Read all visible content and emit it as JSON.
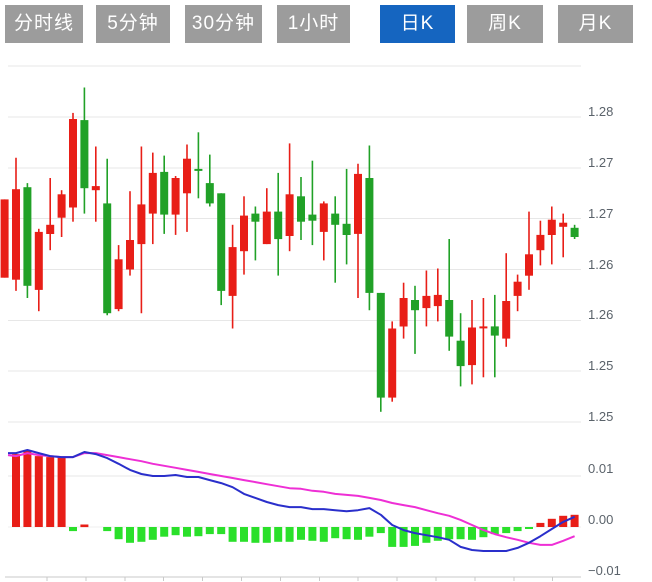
{
  "tabs": [
    {
      "label": "分时线",
      "active": false
    },
    {
      "label": "5分钟",
      "active": false
    },
    {
      "label": "30分钟",
      "active": false
    },
    {
      "label": "1小时",
      "active": false
    },
    {
      "label": "日K",
      "active": true
    },
    {
      "label": "周K",
      "active": false
    },
    {
      "label": "月K",
      "active": false
    }
  ],
  "colors": {
    "tab_bg": "#9c9c9c",
    "tab_active_bg": "#1565c0",
    "tab_text": "#ffffff",
    "up": "#e81e17",
    "down": "#21a127",
    "macd_up": "#e81e17",
    "macd_down": "#2ae02a",
    "dif_line": "#2a2fcb",
    "dea_line": "#ee2fd5",
    "grid": "#e7e7e7",
    "zero_line": "#efefef",
    "axis_line": "#c9c9c9",
    "label_text": "#5b636b"
  },
  "chart_data": {
    "type": "candlestick",
    "title": "",
    "xlabel": "",
    "ylabel": "",
    "legend": [],
    "grid": true,
    "panels": [
      {
        "name": "price",
        "type": "candlestick",
        "ylim": [
          1.2495,
          1.285
        ],
        "grid_prices": [
          1.285,
          1.28,
          1.275,
          1.27,
          1.265,
          1.26,
          1.255,
          1.25
        ],
        "y_ticks": {
          "labels": [
            "1.28",
            "1.27",
            "1.27",
            "1.26",
            "1.26",
            "1.25",
            "1.25"
          ],
          "prices": [
            1.28,
            1.275,
            1.27,
            1.265,
            1.26,
            1.255,
            1.25
          ]
        },
        "candles_ohlc": [
          [
            1.2642,
            1.2719,
            1.2642,
            1.2719
          ],
          [
            1.264,
            1.276,
            1.2629,
            1.2729
          ],
          [
            1.2731,
            1.2735,
            1.2622,
            1.2634
          ],
          [
            1.263,
            1.269,
            1.2609,
            1.2687
          ],
          [
            1.2685,
            1.274,
            1.2669,
            1.2694
          ],
          [
            1.2701,
            1.2728,
            1.2682,
            1.2724
          ],
          [
            1.2711,
            1.2804,
            1.2697,
            1.2798
          ],
          [
            1.2797,
            1.2829,
            1.2705,
            1.273
          ],
          [
            1.2728,
            1.2771,
            1.2697,
            1.2732
          ],
          [
            1.2715,
            1.2759,
            1.2605,
            1.2607
          ],
          [
            1.2611,
            1.2674,
            1.2609,
            1.266
          ],
          [
            1.265,
            1.2727,
            1.2644,
            1.2679
          ],
          [
            1.2675,
            1.2771,
            1.2607,
            1.2714
          ],
          [
            1.2705,
            1.2765,
            1.2675,
            1.2745
          ],
          [
            1.2746,
            1.2762,
            1.2685,
            1.2704
          ],
          [
            1.2704,
            1.2742,
            1.2684,
            1.274
          ],
          [
            1.2725,
            1.2773,
            1.2687,
            1.2759
          ],
          [
            1.2749,
            1.2785,
            1.272,
            1.2747
          ],
          [
            1.2735,
            1.2763,
            1.2712,
            1.2715
          ],
          [
            1.2725,
            1.2725,
            1.2615,
            1.2629
          ],
          [
            1.2624,
            1.2694,
            1.2592,
            1.2672
          ],
          [
            1.2668,
            1.2722,
            1.2645,
            1.2703
          ],
          [
            1.2705,
            1.2712,
            1.2659,
            1.2697
          ],
          [
            1.2675,
            1.273,
            1.2675,
            1.2707
          ],
          [
            1.2707,
            1.2745,
            1.2644,
            1.268
          ],
          [
            1.2683,
            1.2774,
            1.2668,
            1.2724
          ],
          [
            1.2722,
            1.2741,
            1.2679,
            1.2697
          ],
          [
            1.2704,
            1.2757,
            1.2674,
            1.2698
          ],
          [
            1.2687,
            1.2717,
            1.2659,
            1.2715
          ],
          [
            1.2705,
            1.2722,
            1.2637,
            1.2694
          ],
          [
            1.2695,
            1.2749,
            1.2655,
            1.2684
          ],
          [
            1.2685,
            1.2754,
            1.2622,
            1.2744
          ],
          [
            1.274,
            1.2772,
            1.261,
            1.2627
          ],
          [
            1.2627,
            1.2627,
            1.251,
            1.2524
          ],
          [
            1.2524,
            1.2599,
            1.252,
            1.2592
          ],
          [
            1.2594,
            1.2637,
            1.2582,
            1.2622
          ],
          [
            1.262,
            1.2634,
            1.2567,
            1.261
          ],
          [
            1.2612,
            1.2649,
            1.2594,
            1.2624
          ],
          [
            1.2614,
            1.2651,
            1.2599,
            1.2625
          ],
          [
            1.262,
            1.268,
            1.257,
            1.2584
          ],
          [
            1.258,
            1.2607,
            1.2535,
            1.2555
          ],
          [
            1.2556,
            1.262,
            1.2537,
            1.2593
          ],
          [
            1.2592,
            1.2622,
            1.2544,
            1.2594
          ],
          [
            1.2594,
            1.2625,
            1.2544,
            1.2585
          ],
          [
            1.2582,
            1.2666,
            1.2574,
            1.2619
          ],
          [
            1.2624,
            1.2645,
            1.2609,
            1.2638
          ],
          [
            1.2644,
            1.2707,
            1.263,
            1.2665
          ],
          [
            1.2669,
            1.2698,
            1.2654,
            1.2684
          ],
          [
            1.2684,
            1.2712,
            1.2655,
            1.2699
          ],
          [
            1.2692,
            1.2705,
            1.2662,
            1.2696
          ],
          [
            1.2691,
            1.2694,
            1.268,
            1.2682
          ]
        ]
      },
      {
        "name": "macd",
        "type": "bar+line",
        "ylim": [
          -0.012,
          0.017
        ],
        "y_ticks": {
          "labels": [
            "0.01",
            "0.00",
            "−0.01"
          ],
          "values": [
            0.01,
            0,
            -0.01
          ]
        },
        "histogram": [
          null,
          0.0143,
          0.0151,
          0.0139,
          0.0137,
          0.0137,
          -0.0008,
          0.0005,
          null,
          -0.0008,
          -0.0024,
          -0.0031,
          -0.0029,
          -0.0025,
          -0.0019,
          -0.0016,
          -0.0019,
          -0.0018,
          -0.0014,
          -0.0014,
          -0.0029,
          -0.0029,
          -0.0031,
          -0.0031,
          -0.0029,
          -0.0029,
          -0.0025,
          -0.0027,
          -0.0029,
          -0.0022,
          -0.0024,
          -0.0025,
          -0.0019,
          -0.0012,
          -0.0039,
          -0.0039,
          -0.0037,
          -0.0031,
          -0.0027,
          -0.0024,
          -0.0024,
          -0.0025,
          -0.002,
          -0.0014,
          -0.0012,
          -0.0008,
          -0.0004,
          0.0008,
          0.0016,
          0.0022,
          0.0024
        ],
        "series": [
          {
            "name": "DIF",
            "values": [
              0.0145,
              0.0145,
              0.0151,
              0.0145,
              0.0139,
              0.0137,
              0.0137,
              0.0147,
              0.0143,
              0.0135,
              0.0124,
              0.0112,
              0.0104,
              0.01,
              0.01,
              0.0102,
              0.0098,
              0.0098,
              0.0092,
              0.0086,
              0.0078,
              0.0065,
              0.0057,
              0.0049,
              0.0043,
              0.0039,
              0.0039,
              0.0035,
              0.0035,
              0.0033,
              0.0031,
              0.0033,
              0.0037,
              0.0024,
              0.0004,
              -0.0006,
              -0.0012,
              -0.0016,
              -0.002,
              -0.0025,
              -0.0039,
              -0.0045,
              -0.0047,
              -0.0047,
              -0.0047,
              -0.0041,
              -0.0031,
              -0.0018,
              -0.0004,
              0.001,
              0.002
            ]
          },
          {
            "name": "DEA",
            "values": [
              0.0141,
              0.0139,
              0.0145,
              0.0141,
              0.0139,
              0.0137,
              0.0137,
              0.0145,
              0.0145,
              0.0141,
              0.0137,
              0.0133,
              0.0129,
              0.0124,
              0.012,
              0.0116,
              0.0112,
              0.0108,
              0.0104,
              0.01,
              0.0096,
              0.0092,
              0.0088,
              0.0084,
              0.008,
              0.0076,
              0.0075,
              0.0071,
              0.0069,
              0.0065,
              0.0063,
              0.0061,
              0.0057,
              0.0053,
              0.0047,
              0.0043,
              0.0039,
              0.0033,
              0.0027,
              0.0022,
              0.0014,
              0.0004,
              -0.0006,
              -0.0014,
              -0.002,
              -0.0025,
              -0.0031,
              -0.0035,
              -0.0035,
              -0.0027,
              -0.0018
            ]
          }
        ]
      }
    ],
    "x_axis": {
      "labels": [],
      "tick_count": 14
    }
  }
}
